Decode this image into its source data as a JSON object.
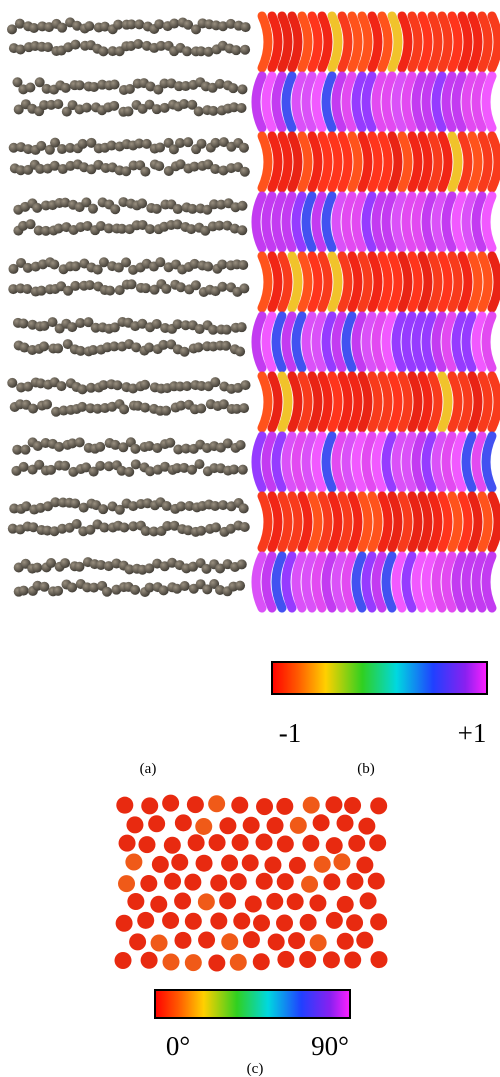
{
  "panel_b": {
    "colorbar": {
      "min_label": "-1",
      "max_label": "+1"
    }
  },
  "captions": {
    "a": "(a)",
    "b": "(b)",
    "c": "(c)"
  },
  "panel_c": {
    "colorbar": {
      "min_label": "0°",
      "max_label": "90°"
    }
  }
}
